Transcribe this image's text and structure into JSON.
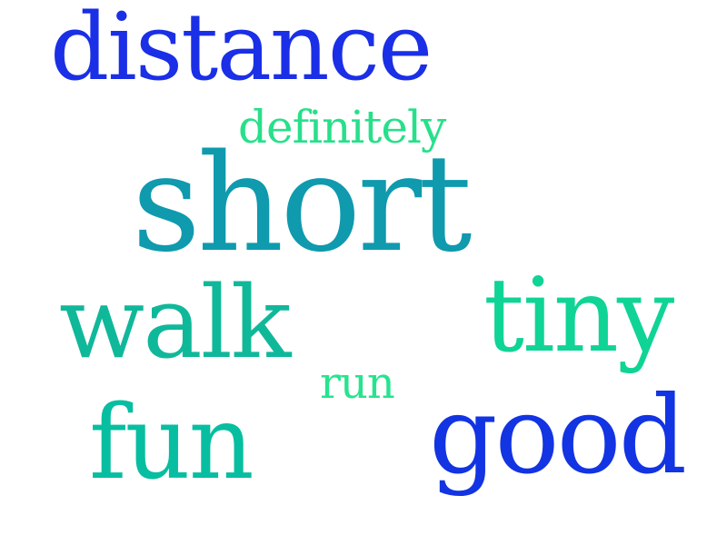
{
  "words": [
    {
      "id": "distance",
      "text": "distance",
      "color": "#1a2fe6"
    },
    {
      "id": "definitely",
      "text": "definitely",
      "color": "#27e08a"
    },
    {
      "id": "short",
      "text": "short",
      "color": "#0f9aae"
    },
    {
      "id": "walk",
      "text": "walk",
      "color": "#10b89a"
    },
    {
      "id": "tiny",
      "text": "tiny",
      "color": "#0fd496"
    },
    {
      "id": "run",
      "text": "run",
      "color": "#26e48e"
    },
    {
      "id": "fun",
      "text": "fun",
      "color": "#07bea0"
    },
    {
      "id": "good",
      "text": "good",
      "color": "#1234e3"
    }
  ]
}
